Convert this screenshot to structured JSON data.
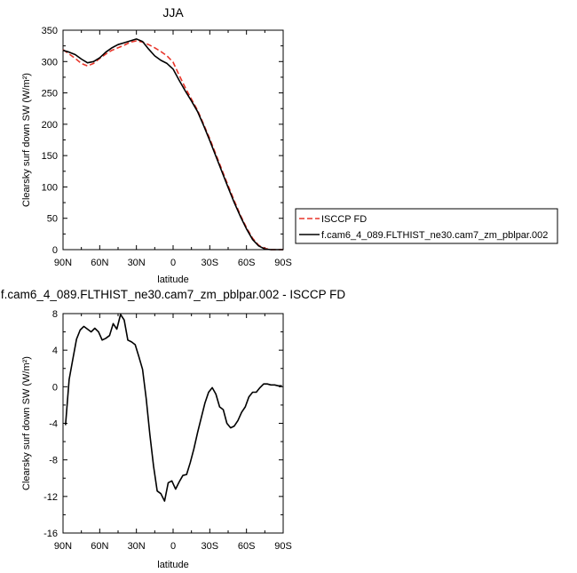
{
  "chart_data": [
    {
      "type": "line",
      "title": "JJA",
      "xlabel": "latitude",
      "ylabel": "Clearsky surf down SW (W/m²)",
      "x_ticks": [
        "90N",
        "60N",
        "30N",
        "0",
        "30S",
        "60S",
        "90S"
      ],
      "x_tick_values": [
        -90,
        -60,
        -30,
        0,
        30,
        60,
        90
      ],
      "ylim": [
        0,
        350
      ],
      "y_ticks": [
        0,
        50,
        100,
        150,
        200,
        250,
        300,
        350
      ],
      "legend_position": "right",
      "series": [
        {
          "name": "ISCCP FD",
          "color": "#e8352a",
          "dash": true,
          "x": [
            -90,
            -85,
            -80,
            -75,
            -70,
            -65,
            -60,
            -55,
            -50,
            -45,
            -40,
            -35,
            -30,
            -25,
            -20,
            -15,
            -10,
            -5,
            0,
            5,
            10,
            15,
            20,
            25,
            30,
            35,
            40,
            45,
            50,
            55,
            60,
            65,
            70,
            75,
            80,
            85,
            90
          ],
          "values": [
            319,
            312,
            305,
            297,
            293,
            297,
            305,
            312,
            318,
            322,
            326,
            331,
            333,
            331,
            327,
            322,
            316,
            309,
            299,
            278,
            258,
            240,
            222,
            200,
            177,
            152,
            127,
            102,
            78,
            55,
            35,
            18,
            7,
            2,
            0,
            0,
            0
          ]
        },
        {
          "name": "f.cam6_4_089.FLTHIST_ne30.cam7_zm_pblpar.002",
          "color": "#000000",
          "dash": false,
          "x": [
            -90,
            -85,
            -80,
            -75,
            -70,
            -65,
            -60,
            -55,
            -50,
            -45,
            -40,
            -35,
            -30,
            -25,
            -20,
            -15,
            -10,
            -5,
            0,
            5,
            10,
            15,
            20,
            25,
            30,
            35,
            40,
            45,
            50,
            55,
            60,
            65,
            70,
            75,
            80,
            85,
            90
          ],
          "values": [
            318,
            315,
            311,
            304,
            298,
            300,
            306,
            315,
            322,
            327,
            330,
            333,
            336,
            332,
            320,
            309,
            302,
            297,
            288,
            270,
            253,
            237,
            220,
            198,
            174,
            149,
            124,
            99,
            75,
            53,
            33,
            16,
            6,
            1,
            0,
            0,
            0
          ]
        }
      ]
    },
    {
      "type": "line",
      "title": "f.cam6_4_089.FLTHIST_ne30.cam7_zm_pblpar.002 - ISCCP FD",
      "xlabel": "latitude",
      "ylabel": "Clearsky surf down SW (W/m²)",
      "x_ticks": [
        "90N",
        "60N",
        "30N",
        "0",
        "30S",
        "60S",
        "90S"
      ],
      "x_tick_values": [
        -90,
        -60,
        -30,
        0,
        30,
        60,
        90
      ],
      "ylim": [
        -16,
        8
      ],
      "y_ticks": [
        -16,
        -12,
        -8,
        -4,
        0,
        4,
        8
      ],
      "series": [
        {
          "color": "#000000",
          "x": [
            -88,
            -85,
            -82,
            -79,
            -76,
            -73,
            -70,
            -67,
            -64,
            -61,
            -58,
            -55,
            -52,
            -49,
            -46,
            -43,
            -40,
            -37,
            -34,
            -31,
            -28,
            -25,
            -22,
            -19,
            -16,
            -13,
            -10,
            -7,
            -4,
            -1,
            2,
            5,
            8,
            11,
            14,
            17,
            20,
            23,
            26,
            29,
            32,
            35,
            38,
            41,
            44,
            47,
            50,
            53,
            56,
            59,
            62,
            65,
            68,
            71,
            74,
            77,
            80,
            83,
            86,
            89
          ],
          "values": [
            -4.2,
            0.8,
            3.0,
            5.2,
            6.2,
            6.6,
            6.3,
            6.0,
            6.4,
            6.0,
            5.1,
            5.3,
            5.6,
            6.9,
            6.3,
            7.9,
            7.3,
            5.1,
            4.9,
            4.6,
            3.3,
            1.9,
            -1.3,
            -5.2,
            -8.7,
            -11.4,
            -11.7,
            -12.5,
            -10.5,
            -10.3,
            -11.2,
            -10.4,
            -9.7,
            -9.6,
            -8.3,
            -6.8,
            -5.0,
            -3.4,
            -1.8,
            -0.6,
            -0.1,
            -0.8,
            -2.2,
            -2.5,
            -4.0,
            -4.5,
            -4.3,
            -3.7,
            -2.8,
            -2.2,
            -1.1,
            -0.6,
            -0.6,
            -0.1,
            0.3,
            0.3,
            0.2,
            0.2,
            0.1,
            0.1
          ]
        }
      ]
    }
  ]
}
